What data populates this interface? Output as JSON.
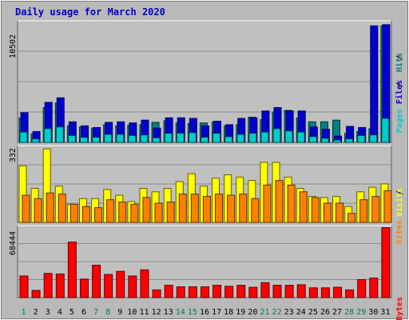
{
  "title": "Daily usage for March 2020",
  "colors": {
    "background": "#b9b9b9",
    "panel": "#c0c0c0",
    "grid": "#8a8a8a",
    "title": "#0000cc",
    "pages": "#00cccc",
    "pages_dark": "#006a6a",
    "files": "#0000cc",
    "hits": "#008080",
    "visits": "#ffff00",
    "sites": "#ff8000",
    "kbytes": "#ff0000",
    "weekday_label": "#000000",
    "weekend_label": "#008040"
  },
  "chart_data": [
    {
      "type": "bar",
      "name": "hits-files-pages",
      "max_label": "10502",
      "ylim": [
        0,
        10502
      ],
      "legend": [
        "Pages",
        "Files",
        "Hits"
      ],
      "categories": [
        "1",
        "2",
        "3",
        "4",
        "5",
        "6",
        "7",
        "8",
        "9",
        "10",
        "11",
        "12",
        "13",
        "14",
        "15",
        "16",
        "17",
        "18",
        "19",
        "20",
        "21",
        "22",
        "23",
        "24",
        "25",
        "26",
        "27",
        "28",
        "29",
        "30",
        "31"
      ],
      "series": [
        {
          "name": "Hits",
          "values": [
            2150,
            750,
            3050,
            3450,
            1450,
            1350,
            1250,
            1550,
            1450,
            1500,
            1550,
            1750,
            1900,
            1700,
            1650,
            1700,
            1800,
            1450,
            1550,
            2200,
            2000,
            2650,
            2800,
            2150,
            1800,
            1800,
            1950,
            800,
            950,
            1200,
            10200
          ]
        },
        {
          "name": "Files",
          "values": [
            2600,
            950,
            3500,
            3900,
            1800,
            1450,
            1300,
            1750,
            1800,
            1700,
            1950,
            1250,
            2150,
            2150,
            2100,
            1450,
            1850,
            1550,
            2100,
            2150,
            2750,
            3050,
            2750,
            2750,
            1350,
            1150,
            550,
            1400,
            1300,
            10200,
            10300
          ]
        },
        {
          "name": "Pages",
          "values": [
            900,
            300,
            1200,
            1350,
            600,
            450,
            450,
            700,
            700,
            600,
            650,
            400,
            800,
            800,
            850,
            450,
            800,
            500,
            700,
            800,
            900,
            1200,
            1000,
            900,
            500,
            350,
            200,
            300,
            600,
            650,
            2100
          ]
        }
      ]
    },
    {
      "type": "bar",
      "name": "visits-sites",
      "max_label": "332",
      "ylim": [
        0,
        332
      ],
      "legend": [
        "Sites",
        "Visits"
      ],
      "categories": [
        "1",
        "2",
        "3",
        "4",
        "5",
        "6",
        "7",
        "8",
        "9",
        "10",
        "11",
        "12",
        "13",
        "14",
        "15",
        "16",
        "17",
        "18",
        "19",
        "20",
        "21",
        "22",
        "23",
        "24",
        "25",
        "26",
        "27",
        "28",
        "29",
        "30",
        "31"
      ],
      "series": [
        {
          "name": "Visits",
          "values": [
            250,
            150,
            325,
            160,
            80,
            105,
            105,
            145,
            120,
            92,
            150,
            135,
            150,
            180,
            215,
            160,
            195,
            210,
            200,
            185,
            265,
            265,
            200,
            150,
            115,
            110,
            115,
            70,
            135,
            155,
            170
          ]
        },
        {
          "name": "Sites",
          "values": [
            120,
            105,
            130,
            125,
            80,
            70,
            65,
            100,
            90,
            80,
            110,
            85,
            90,
            125,
            125,
            115,
            125,
            120,
            125,
            105,
            165,
            185,
            165,
            135,
            110,
            85,
            85,
            40,
            100,
            115,
            140
          ]
        }
      ]
    },
    {
      "type": "bar",
      "name": "kbytes",
      "max_label": "68444",
      "ylim": [
        0,
        68444
      ],
      "legend": [
        "KBytes"
      ],
      "categories": [
        "1",
        "2",
        "3",
        "4",
        "5",
        "6",
        "7",
        "8",
        "9",
        "10",
        "11",
        "12",
        "13",
        "14",
        "15",
        "16",
        "17",
        "18",
        "19",
        "20",
        "21",
        "22",
        "23",
        "24",
        "25",
        "26",
        "27",
        "28",
        "29",
        "30",
        "31"
      ],
      "series": [
        {
          "name": "KBytes",
          "values": [
            21000,
            7000,
            23500,
            23000,
            54000,
            18000,
            31500,
            22500,
            25500,
            21000,
            27000,
            7500,
            12000,
            10500,
            10500,
            10500,
            12000,
            11000,
            12000,
            10000,
            14500,
            12000,
            12000,
            12500,
            9500,
            9500,
            10000,
            7500,
            17500,
            19000,
            68000
          ]
        }
      ]
    }
  ],
  "x_labels": [
    {
      "text": "1",
      "weekend": true
    },
    {
      "text": "2",
      "weekend": false
    },
    {
      "text": "3",
      "weekend": false
    },
    {
      "text": "4",
      "weekend": false
    },
    {
      "text": "5",
      "weekend": false
    },
    {
      "text": "6",
      "weekend": false
    },
    {
      "text": "7",
      "weekend": true
    },
    {
      "text": "8",
      "weekend": true
    },
    {
      "text": "9",
      "weekend": false
    },
    {
      "text": "10",
      "weekend": false
    },
    {
      "text": "11",
      "weekend": false
    },
    {
      "text": "12",
      "weekend": false
    },
    {
      "text": "13",
      "weekend": false
    },
    {
      "text": "14",
      "weekend": true
    },
    {
      "text": "15",
      "weekend": true
    },
    {
      "text": "16",
      "weekend": false
    },
    {
      "text": "17",
      "weekend": false
    },
    {
      "text": "18",
      "weekend": false
    },
    {
      "text": "19",
      "weekend": false
    },
    {
      "text": "20",
      "weekend": false
    },
    {
      "text": "21",
      "weekend": true
    },
    {
      "text": "22",
      "weekend": true
    },
    {
      "text": "23",
      "weekend": false
    },
    {
      "text": "24",
      "weekend": false
    },
    {
      "text": "25",
      "weekend": false
    },
    {
      "text": "26",
      "weekend": false
    },
    {
      "text": "27",
      "weekend": false
    },
    {
      "text": "28",
      "weekend": true
    },
    {
      "text": "29",
      "weekend": true
    },
    {
      "text": "30",
      "weekend": false
    },
    {
      "text": "31",
      "weekend": false
    }
  ]
}
